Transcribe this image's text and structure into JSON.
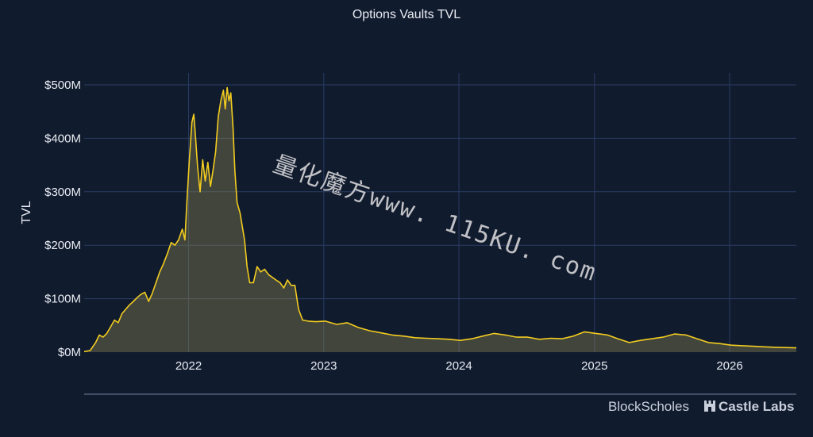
{
  "chart_data": {
    "type": "area",
    "title": "Options Vaults TVL",
    "ylabel": "TVL",
    "xlabel": "",
    "x_ticks": [
      "2022",
      "2023",
      "2024",
      "2025",
      "2026"
    ],
    "y_ticks": [
      "$0M",
      "$100M",
      "$200M",
      "$300M",
      "$400M",
      "$500M"
    ],
    "xlim": [
      "2021-03-25",
      "2026-06-30"
    ],
    "ylim": [
      0,
      500
    ],
    "grid": true,
    "series": [
      {
        "color": "#f2cc1f",
        "points": [
          [
            "2021-03-25",
            1
          ],
          [
            "2021-04-10",
            3
          ],
          [
            "2021-04-25",
            18
          ],
          [
            "2021-05-05",
            32
          ],
          [
            "2021-05-15",
            28
          ],
          [
            "2021-05-25",
            35
          ],
          [
            "2021-06-05",
            48
          ],
          [
            "2021-06-15",
            60
          ],
          [
            "2021-06-25",
            55
          ],
          [
            "2021-07-05",
            72
          ],
          [
            "2021-07-15",
            80
          ],
          [
            "2021-07-25",
            88
          ],
          [
            "2021-08-05",
            95
          ],
          [
            "2021-08-15",
            102
          ],
          [
            "2021-08-25",
            108
          ],
          [
            "2021-09-05",
            112
          ],
          [
            "2021-09-15",
            95
          ],
          [
            "2021-09-25",
            110
          ],
          [
            "2021-10-05",
            130
          ],
          [
            "2021-10-15",
            150
          ],
          [
            "2021-10-25",
            165
          ],
          [
            "2021-11-05",
            185
          ],
          [
            "2021-11-15",
            205
          ],
          [
            "2021-11-25",
            200
          ],
          [
            "2021-12-05",
            210
          ],
          [
            "2021-12-15",
            230
          ],
          [
            "2021-12-22",
            210
          ],
          [
            "2021-12-28",
            290
          ],
          [
            "2022-01-03",
            360
          ],
          [
            "2022-01-10",
            430
          ],
          [
            "2022-01-15",
            445
          ],
          [
            "2022-01-20",
            400
          ],
          [
            "2022-01-25",
            350
          ],
          [
            "2022-02-01",
            300
          ],
          [
            "2022-02-08",
            360
          ],
          [
            "2022-02-15",
            320
          ],
          [
            "2022-02-22",
            355
          ],
          [
            "2022-03-01",
            310
          ],
          [
            "2022-03-08",
            340
          ],
          [
            "2022-03-15",
            375
          ],
          [
            "2022-03-22",
            440
          ],
          [
            "2022-03-29",
            470
          ],
          [
            "2022-04-05",
            490
          ],
          [
            "2022-04-10",
            455
          ],
          [
            "2022-04-15",
            495
          ],
          [
            "2022-04-20",
            470
          ],
          [
            "2022-04-25",
            485
          ],
          [
            "2022-05-01",
            420
          ],
          [
            "2022-05-06",
            340
          ],
          [
            "2022-05-12",
            280
          ],
          [
            "2022-05-20",
            260
          ],
          [
            "2022-06-01",
            210
          ],
          [
            "2022-06-08",
            160
          ],
          [
            "2022-06-15",
            130
          ],
          [
            "2022-06-25",
            130
          ],
          [
            "2022-07-05",
            160
          ],
          [
            "2022-07-15",
            150
          ],
          [
            "2022-07-25",
            155
          ],
          [
            "2022-08-05",
            145
          ],
          [
            "2022-08-15",
            140
          ],
          [
            "2022-08-25",
            135
          ],
          [
            "2022-09-05",
            130
          ],
          [
            "2022-09-15",
            120
          ],
          [
            "2022-09-25",
            135
          ],
          [
            "2022-10-05",
            125
          ],
          [
            "2022-10-15",
            125
          ],
          [
            "2022-10-25",
            80
          ],
          [
            "2022-11-05",
            60
          ],
          [
            "2022-11-20",
            58
          ],
          [
            "2022-12-10",
            57
          ],
          [
            "2023-01-05",
            58
          ],
          [
            "2023-02-05",
            52
          ],
          [
            "2023-03-05",
            55
          ],
          [
            "2023-04-05",
            46
          ],
          [
            "2023-05-05",
            40
          ],
          [
            "2023-06-05",
            36
          ],
          [
            "2023-07-05",
            32
          ],
          [
            "2023-08-05",
            30
          ],
          [
            "2023-09-05",
            27
          ],
          [
            "2023-10-05",
            26
          ],
          [
            "2023-11-05",
            25
          ],
          [
            "2023-12-05",
            24
          ],
          [
            "2024-01-05",
            22
          ],
          [
            "2024-02-05",
            25
          ],
          [
            "2024-03-05",
            30
          ],
          [
            "2024-04-05",
            35
          ],
          [
            "2024-05-05",
            32
          ],
          [
            "2024-06-05",
            28
          ],
          [
            "2024-07-05",
            28
          ],
          [
            "2024-08-05",
            24
          ],
          [
            "2024-09-05",
            26
          ],
          [
            "2024-10-05",
            25
          ],
          [
            "2024-11-05",
            30
          ],
          [
            "2024-12-05",
            38
          ],
          [
            "2025-01-05",
            35
          ],
          [
            "2025-02-05",
            32
          ],
          [
            "2025-03-05",
            25
          ],
          [
            "2025-04-05",
            18
          ],
          [
            "2025-05-05",
            22
          ],
          [
            "2025-06-05",
            25
          ],
          [
            "2025-07-05",
            28
          ],
          [
            "2025-08-05",
            34
          ],
          [
            "2025-09-05",
            32
          ],
          [
            "2025-10-05",
            25
          ],
          [
            "2025-11-05",
            18
          ],
          [
            "2025-12-05",
            16
          ],
          [
            "2026-01-05",
            13
          ],
          [
            "2026-02-05",
            12
          ],
          [
            "2026-03-05",
            11
          ],
          [
            "2026-04-05",
            10
          ],
          [
            "2026-05-05",
            9
          ],
          [
            "2026-06-30",
            8
          ]
        ]
      }
    ]
  },
  "watermark": "量化魔方www. 115KU. com",
  "brands": {
    "left": "BlockScholes",
    "right": "Castle Labs",
    "right_icon": "castle-icon"
  },
  "colors": {
    "background": "#111b2e",
    "line": "#f2cc1f",
    "grid": "#2a3c63"
  }
}
